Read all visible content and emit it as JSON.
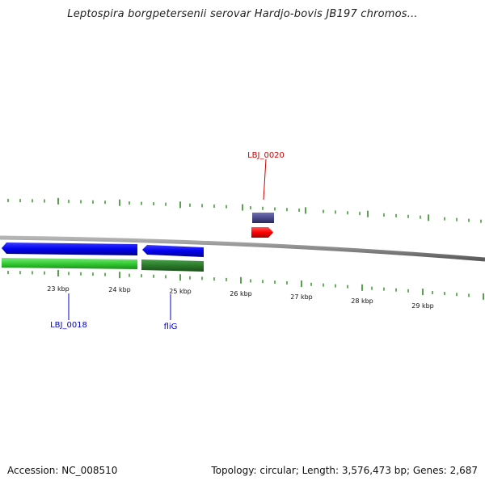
{
  "title": "Leptospira borgpetersenii serovar Hardjo-bovis JB197 chromos...",
  "footer": {
    "accession": "Accession: NC_008510",
    "topology": "Topology: circular; Length: 3,576,473 bp; Genes: 2,687"
  },
  "tick_labels": [
    "23 kbp",
    "24 kbp",
    "25 kbp",
    "26 kbp",
    "27 kbp",
    "28 kbp",
    "29 kbp"
  ],
  "gene_labels": {
    "lbj0020": "LBJ_0020",
    "lbj0018": "LBJ_0018",
    "flig": "fliG"
  },
  "colors": {
    "backbone": "#8a8a8a",
    "tick": "#2e8b22",
    "forward_cds": "#0000ee",
    "forward_gene": "#33cc33",
    "forward_gene_dark": "#2a7a2a",
    "reverse_cds": "#ff0000",
    "reverse_gene": "#4a4a8c",
    "label_red": "#cc0000",
    "label_blue": "#0000cc"
  }
}
